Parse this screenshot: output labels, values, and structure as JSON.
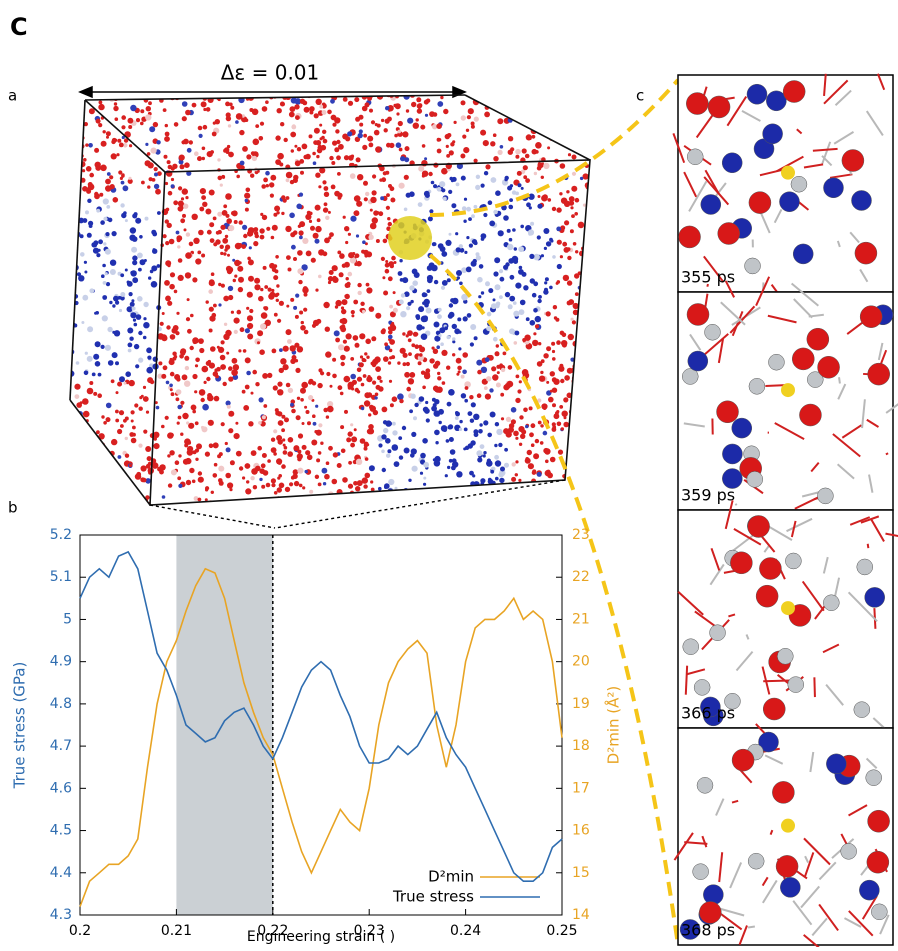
{
  "figure_label": "C",
  "panel_labels": [
    "a",
    "b",
    "c"
  ],
  "annotation": "Δε = 0.01",
  "snapshots": [
    "355 ps",
    "359 ps",
    "366 ps",
    "368 ps"
  ],
  "chart_data": {
    "type": "line",
    "xlabel": "Engineering strain ( )",
    "ylabel": "True stress (GPa)",
    "y2label": "D²min (Å²)",
    "x": [
      0.2,
      0.201,
      0.202,
      0.203,
      0.204,
      0.205,
      0.206,
      0.207,
      0.208,
      0.209,
      0.21,
      0.211,
      0.212,
      0.213,
      0.214,
      0.215,
      0.216,
      0.217,
      0.218,
      0.219,
      0.22,
      0.221,
      0.222,
      0.223,
      0.224,
      0.225,
      0.226,
      0.227,
      0.228,
      0.229,
      0.23,
      0.231,
      0.232,
      0.233,
      0.234,
      0.235,
      0.236,
      0.237,
      0.238,
      0.239,
      0.24,
      0.241,
      0.242,
      0.243,
      0.244,
      0.245,
      0.246,
      0.247,
      0.248,
      0.249,
      0.25
    ],
    "series": [
      {
        "name": "D²min",
        "color": "#e8a424",
        "axis": "y2",
        "values": [
          14.2,
          14.8,
          15.0,
          15.2,
          15.2,
          15.4,
          15.8,
          17.5,
          19.0,
          20.0,
          20.5,
          21.2,
          21.8,
          22.2,
          22.1,
          21.5,
          20.5,
          19.5,
          18.8,
          18.2,
          17.8,
          17.0,
          16.2,
          15.5,
          15.0,
          15.5,
          16.0,
          16.5,
          16.2,
          16.0,
          17.0,
          18.5,
          19.5,
          20.0,
          20.3,
          20.5,
          20.2,
          18.5,
          17.5,
          18.5,
          20.0,
          20.8,
          21.0,
          21.0,
          21.2,
          21.5,
          21.0,
          21.2,
          21.0,
          20.0,
          18.2
        ]
      },
      {
        "name": "True stress",
        "color": "#2f6db0",
        "values": [
          5.05,
          5.1,
          5.12,
          5.1,
          5.15,
          5.16,
          5.12,
          5.02,
          4.92,
          4.88,
          4.82,
          4.75,
          4.73,
          4.71,
          4.72,
          4.76,
          4.78,
          4.79,
          4.75,
          4.7,
          4.67,
          4.72,
          4.78,
          4.84,
          4.88,
          4.9,
          4.88,
          4.82,
          4.77,
          4.7,
          4.66,
          4.66,
          4.67,
          4.7,
          4.68,
          4.7,
          4.74,
          4.78,
          4.72,
          4.68,
          4.65,
          4.6,
          4.55,
          4.5,
          4.45,
          4.4,
          4.38,
          4.38,
          4.4,
          4.46,
          4.48
        ]
      }
    ],
    "xlim": [
      0.2,
      0.25
    ],
    "xticks": [
      0.2,
      0.21,
      0.22,
      0.23,
      0.24,
      0.25
    ],
    "ylim": [
      4.3,
      5.2
    ],
    "yticks": [
      4.3,
      4.4,
      4.5,
      4.6,
      4.7,
      4.8,
      4.9,
      5,
      5.1,
      5.2
    ],
    "y2lim": [
      14,
      23
    ],
    "y2ticks": [
      14,
      15,
      16,
      17,
      18,
      19,
      20,
      21,
      22,
      23
    ],
    "highlight_x": [
      0.21,
      0.22
    ]
  }
}
